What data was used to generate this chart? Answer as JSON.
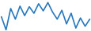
{
  "x": [
    0,
    1,
    2,
    3,
    4,
    5,
    6,
    7,
    8,
    9,
    10,
    11,
    12,
    13,
    14,
    15,
    16,
    17,
    18,
    19
  ],
  "y": [
    14.4,
    12.2,
    15.8,
    14.0,
    16.2,
    14.6,
    16.1,
    15.0,
    16.6,
    15.4,
    16.8,
    15.2,
    14.0,
    15.5,
    13.2,
    15.0,
    12.5,
    14.2,
    12.8,
    14.0
  ],
  "line_color": "#2878be",
  "background_color": "#ffffff",
  "linewidth": 1.2
}
